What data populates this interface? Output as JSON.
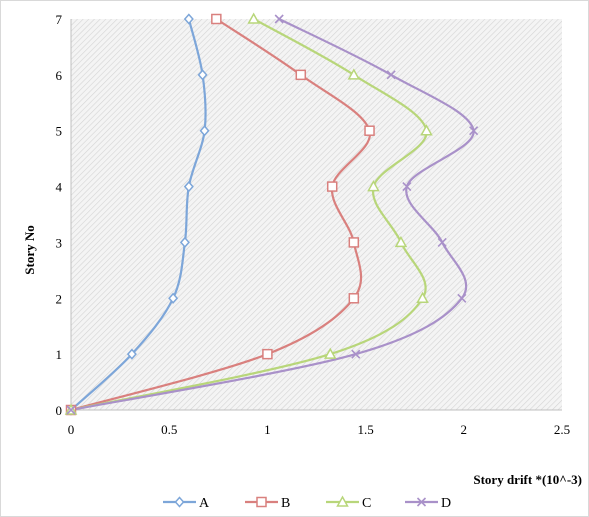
{
  "chart_data": {
    "type": "line",
    "xlabel": "Story drift *(10^-3)",
    "ylabel": "Story No",
    "xlim": [
      0,
      2.5
    ],
    "ylim": [
      0,
      7
    ],
    "x_ticks": [
      "0",
      "0.5",
      "1",
      "1.5",
      "2",
      "2.5"
    ],
    "y_ticks": [
      "0",
      "1",
      "2",
      "3",
      "4",
      "5",
      "6",
      "7"
    ],
    "grid": "hatched plot background",
    "legend_position": "bottom",
    "series": [
      {
        "name": "A",
        "color": "#7da6d9",
        "marker": "diamond",
        "points": [
          [
            0,
            0
          ],
          [
            0.31,
            1
          ],
          [
            0.52,
            2
          ],
          [
            0.58,
            3
          ],
          [
            0.6,
            4
          ],
          [
            0.68,
            5
          ],
          [
            0.67,
            6
          ],
          [
            0.6,
            7
          ]
        ]
      },
      {
        "name": "B",
        "color": "#d9807e",
        "marker": "square",
        "points": [
          [
            0,
            0
          ],
          [
            1.0,
            1
          ],
          [
            1.44,
            2
          ],
          [
            1.44,
            3
          ],
          [
            1.33,
            4
          ],
          [
            1.52,
            5
          ],
          [
            1.17,
            6
          ],
          [
            0.74,
            7
          ]
        ]
      },
      {
        "name": "C",
        "color": "#b8d67a",
        "marker": "triangle",
        "points": [
          [
            0,
            0
          ],
          [
            1.32,
            1
          ],
          [
            1.79,
            2
          ],
          [
            1.68,
            3
          ],
          [
            1.54,
            4
          ],
          [
            1.81,
            5
          ],
          [
            1.44,
            6
          ],
          [
            0.93,
            7
          ]
        ]
      },
      {
        "name": "D",
        "color": "#a991c9",
        "marker": "x",
        "points": [
          [
            0,
            0
          ],
          [
            1.45,
            1
          ],
          [
            1.99,
            2
          ],
          [
            1.89,
            3
          ],
          [
            1.71,
            4
          ],
          [
            2.05,
            5
          ],
          [
            1.63,
            6
          ],
          [
            1.06,
            7
          ]
        ]
      }
    ]
  }
}
